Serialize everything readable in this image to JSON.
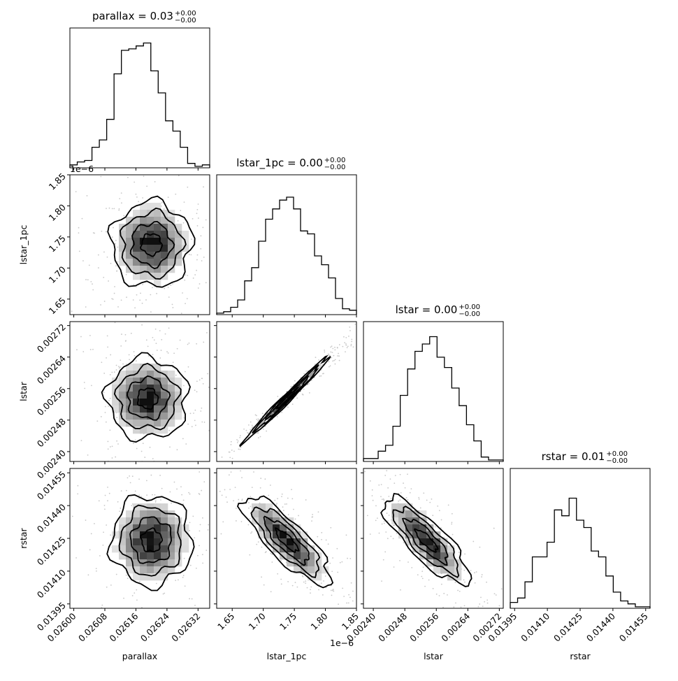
{
  "chart_data": {
    "type": "corner",
    "parameters": [
      "parallax",
      "lstar_1pc",
      "lstar",
      "rstar"
    ],
    "titles": [
      {
        "text": "parallax = 0.03",
        "upper": "+0.00",
        "lower": "−0.00"
      },
      {
        "text": "lstar_1pc = 0.00",
        "upper": "+0.00",
        "lower": "−0.00"
      },
      {
        "text": "lstar = 0.00",
        "upper": "+0.00",
        "lower": "−0.00"
      },
      {
        "text": "rstar = 0.01",
        "upper": "+0.00",
        "lower": "−0.00"
      }
    ],
    "axis_labels": {
      "x": [
        "parallax",
        "lstar_1pc",
        "lstar",
        "rstar"
      ],
      "y": [
        "lstar_1pc",
        "lstar",
        "rstar"
      ]
    },
    "offset_text": {
      "lstar_1pc_y": "1e−6",
      "lstar_1pc_x": "1e−6"
    },
    "ranges": {
      "parallax": [
        0.02599,
        0.02635
      ],
      "lstar_1pc": [
        1.625,
        1.85
      ],
      "lstar": [
        0.002375,
        0.00273
      ],
      "rstar": [
        0.01393,
        0.01457
      ]
    },
    "ticks": {
      "parallax": [
        "0.02600",
        "0.02608",
        "0.02616",
        "0.02624",
        "0.02632"
      ],
      "lstar_1pc_x": [
        "1.65",
        "1.70",
        "1.75",
        "1.80",
        "1.85"
      ],
      "lstar_1pc_y": [
        "1.65",
        "1.70",
        "1.75",
        "1.80",
        "1.85"
      ],
      "lstar": [
        "0.00240",
        "0.00248",
        "0.00256",
        "0.00264",
        "0.00272"
      ],
      "rstar": [
        "0.01395",
        "0.01410",
        "0.01425",
        "0.01440",
        "0.01455"
      ]
    },
    "tick_values": {
      "parallax": [
        0.026,
        0.02608,
        0.02616,
        0.02624,
        0.02632
      ],
      "lstar_1pc": [
        1.65,
        1.7,
        1.75,
        1.8,
        1.85
      ],
      "lstar": [
        0.0024,
        0.00248,
        0.00256,
        0.00264,
        0.00272
      ],
      "rstar": [
        0.01395,
        0.0141,
        0.01425,
        0.0144,
        0.01455
      ]
    },
    "histograms": {
      "parallax": [
        0.02,
        0.04,
        0.05,
        0.14,
        0.19,
        0.33,
        0.64,
        0.8,
        0.81,
        0.83,
        0.85,
        0.66,
        0.51,
        0.32,
        0.25,
        0.14,
        0.03,
        0.01,
        0.02
      ],
      "lstar_1pc": [
        0.01,
        0.02,
        0.05,
        0.1,
        0.23,
        0.32,
        0.5,
        0.65,
        0.72,
        0.78,
        0.8,
        0.72,
        0.57,
        0.55,
        0.4,
        0.34,
        0.25,
        0.11,
        0.04,
        0.03
      ],
      "lstar": [
        0.02,
        0.02,
        0.07,
        0.11,
        0.24,
        0.45,
        0.63,
        0.75,
        0.8,
        0.85,
        0.71,
        0.64,
        0.5,
        0.38,
        0.25,
        0.14,
        0.03,
        0.01,
        0.01
      ],
      "rstar": [
        0.04,
        0.07,
        0.18,
        0.35,
        0.35,
        0.45,
        0.67,
        0.63,
        0.75,
        0.6,
        0.55,
        0.39,
        0.35,
        0.22,
        0.11,
        0.05,
        0.03,
        0.01,
        0.01
      ]
    },
    "joint": [
      {
        "x": "parallax",
        "y": "lstar_1pc",
        "center": [
          0.0262,
          1.738
        ],
        "sigma": [
          4.5e-05,
          0.03
        ],
        "rho": 0.0
      },
      {
        "x": "parallax",
        "y": "lstar",
        "center": [
          0.02619,
          0.002535
        ],
        "sigma": [
          4.5e-05,
          4.5e-05
        ],
        "rho": 0.0
      },
      {
        "x": "lstar_1pc",
        "y": "lstar",
        "center": [
          1.738,
          0.002535
        ],
        "sigma": [
          0.03,
          4.5e-05
        ],
        "rho": 0.99
      },
      {
        "x": "parallax",
        "y": "rstar",
        "center": [
          0.0262,
          0.01424
        ],
        "sigma": [
          4.5e-05,
          9e-05
        ],
        "rho": 0.0
      },
      {
        "x": "lstar_1pc",
        "y": "rstar",
        "center": [
          1.738,
          0.01424
        ],
        "sigma": [
          0.03,
          9e-05
        ],
        "rho": -0.82
      },
      {
        "x": "lstar",
        "y": "rstar",
        "center": [
          0.002535,
          0.01424
        ],
        "sigma": [
          4.5e-05,
          9e-05
        ],
        "rho": -0.82
      }
    ],
    "grid": false,
    "colors": {
      "line": "#000000",
      "density_low": "#f5f5f5",
      "density_high": "#000000"
    }
  }
}
